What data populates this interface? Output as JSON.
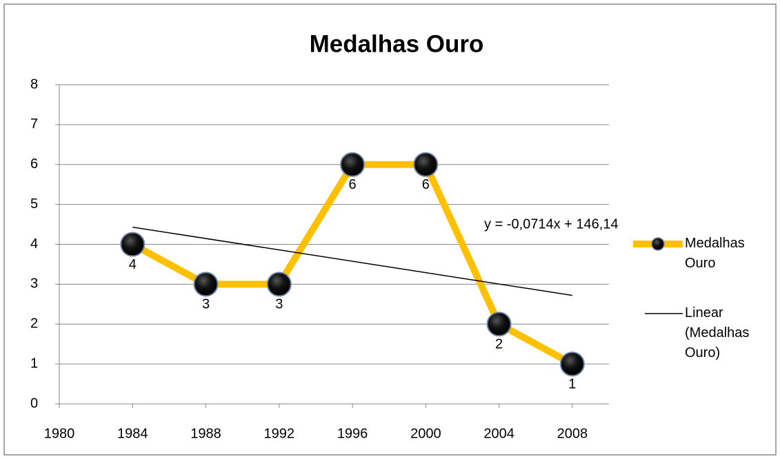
{
  "chart_data": {
    "type": "line",
    "title": "Medalhas Ouro",
    "x": [
      1984,
      1988,
      1992,
      1996,
      2000,
      2004,
      2008
    ],
    "series": [
      {
        "name": "Medalhas Ouro",
        "color": "#ffc000",
        "values": [
          4,
          3,
          3,
          6,
          6,
          2,
          1
        ]
      },
      {
        "name": "Linear (Medalhas Ouro)",
        "color": "#000000",
        "x": [
          1984,
          2008
        ],
        "values": [
          4.43,
          2.72
        ]
      }
    ],
    "annotation": "y = -0,0714x + 146,14",
    "xlim": [
      1980,
      2010
    ],
    "xticks": [
      1980,
      1984,
      1988,
      1992,
      1996,
      2000,
      2004,
      2008
    ],
    "ylim": [
      0,
      8
    ],
    "yticks": [
      0,
      1,
      2,
      3,
      4,
      5,
      6,
      7,
      8
    ],
    "grid": true,
    "legend": "right"
  }
}
